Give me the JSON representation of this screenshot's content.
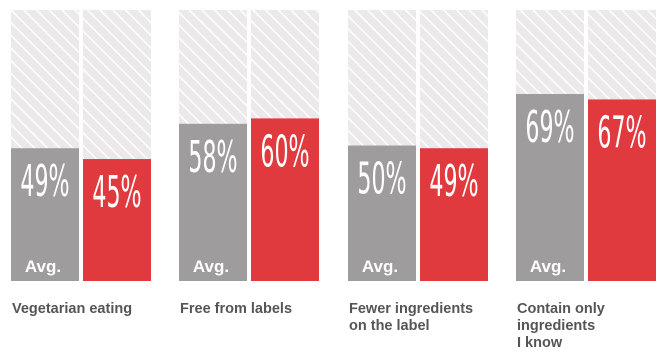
{
  "chart_data": {
    "type": "bar",
    "categories": [
      [
        "Vegetarian eating"
      ],
      [
        "Free from labels"
      ],
      [
        "Fewer ingredients",
        "on the label"
      ],
      [
        "Contain only",
        "ingredients",
        "I know"
      ]
    ],
    "series": [
      {
        "values": [
          49,
          58,
          50,
          69
        ],
        "value_labels": [
          "49%",
          "58%",
          "50%",
          "69%"
        ],
        "inner_label": "Avg.",
        "color": "#9e9c9d"
      },
      {
        "values": [
          45,
          60,
          49,
          67
        ],
        "value_labels": [
          "45%",
          "60%",
          "49%",
          "67%"
        ],
        "color": "#e13a3e"
      }
    ],
    "ylim": [
      0,
      100
    ],
    "background_color": "#ebe9ea",
    "hatch_color": "#ffffff"
  }
}
